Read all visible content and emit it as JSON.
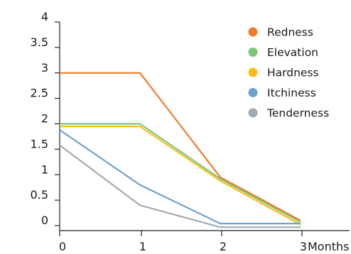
{
  "chart_data": {
    "type": "line",
    "title": "",
    "xlabel": "Months",
    "ylabel": "",
    "x": [
      0,
      1,
      2,
      3
    ],
    "xticks": [
      "0",
      "1",
      "2",
      "3"
    ],
    "yticks": [
      "0",
      "0.5",
      "1",
      "1.5",
      "2",
      "2.5",
      "3",
      "3.5",
      "4"
    ],
    "xlim": [
      0,
      3
    ],
    "ylim": [
      0,
      4
    ],
    "grid": false,
    "legend_position": "top-right",
    "series": [
      {
        "name": "Redness",
        "color": "#f07c28",
        "values": [
          3.0,
          3.0,
          0.95,
          0.1
        ]
      },
      {
        "name": "Elevation",
        "color": "#7cc576",
        "values": [
          2.0,
          2.0,
          0.92,
          0.07
        ]
      },
      {
        "name": "Hardness",
        "color": "#f8bd19",
        "values": [
          1.95,
          1.95,
          0.88,
          0.02
        ]
      },
      {
        "name": "Itchiness",
        "color": "#6ea1cc",
        "values": [
          1.88,
          0.8,
          0.04,
          0.04
        ]
      },
      {
        "name": "Tenderness",
        "color": "#a1a9b0",
        "values": [
          1.58,
          0.4,
          -0.03,
          -0.03
        ]
      }
    ]
  }
}
